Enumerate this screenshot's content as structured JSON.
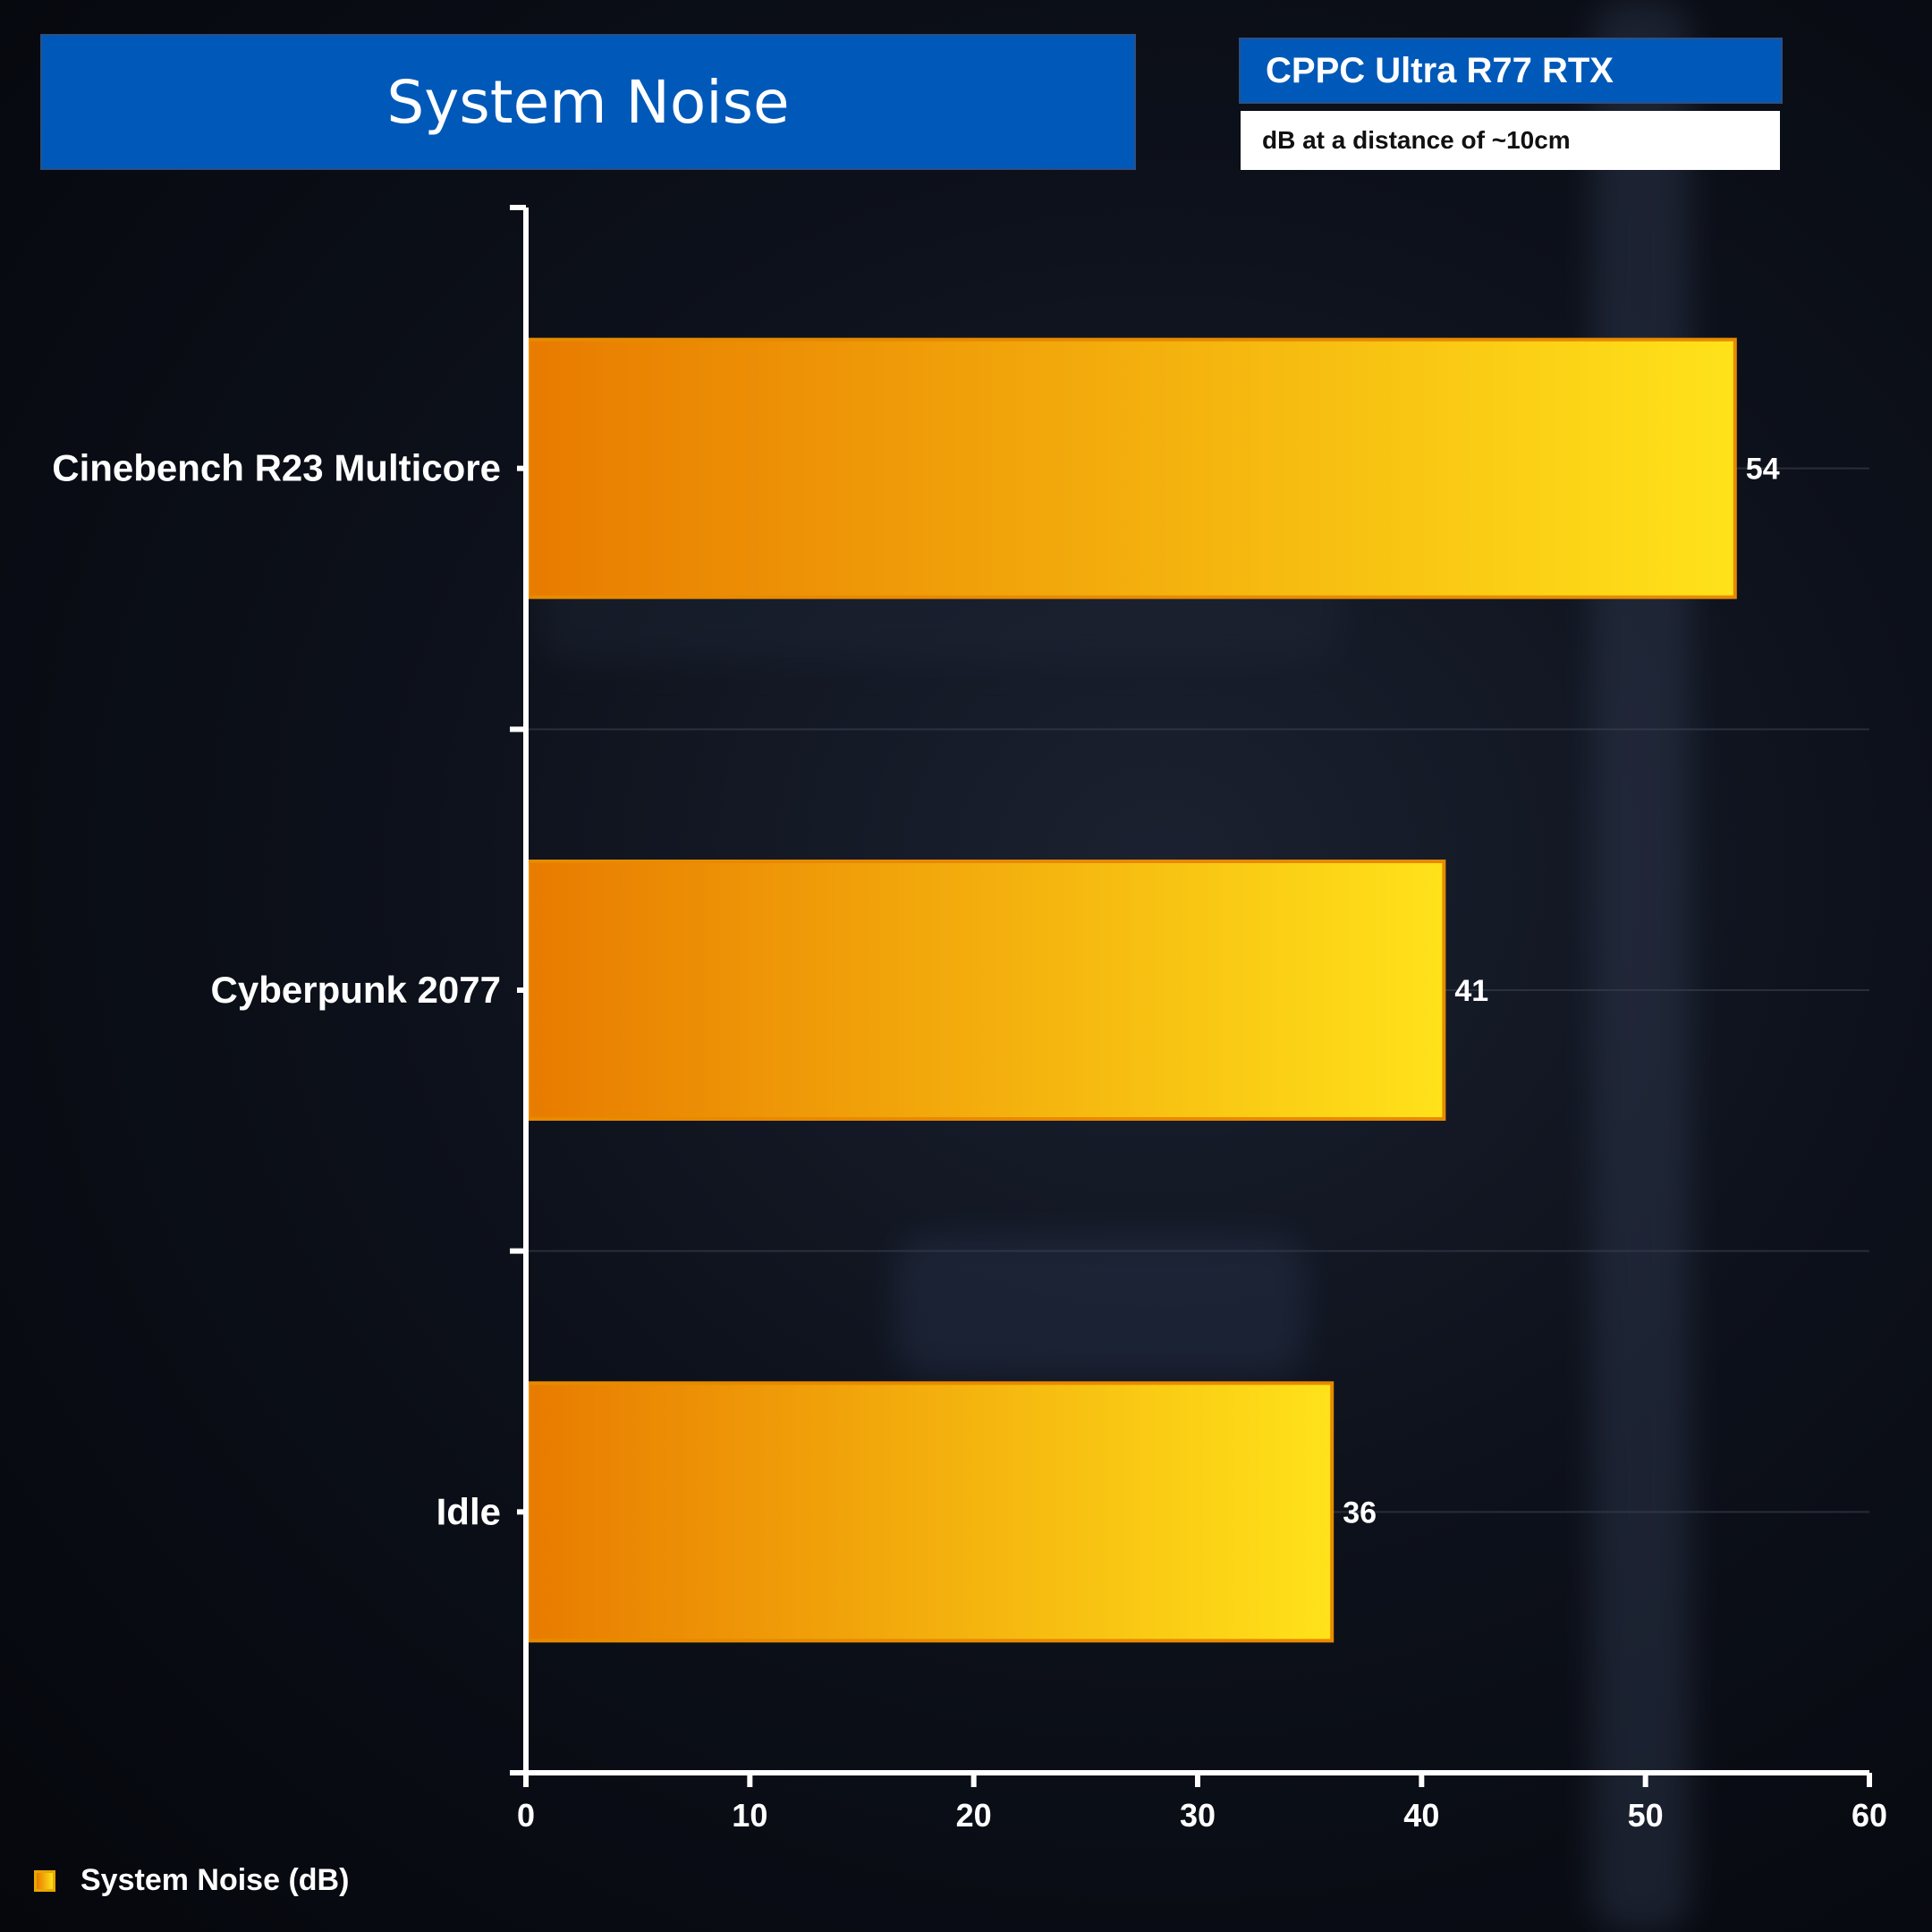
{
  "chart_data": {
    "type": "bar",
    "orientation": "horizontal",
    "title": "System Noise",
    "subtitle": "CPPC Ultra R77 RTX",
    "note": "dB at a distance of  ~10cm",
    "categories": [
      "Cinebench R23 Multicore",
      "Cyberpunk 2077",
      "Idle"
    ],
    "series": [
      {
        "name": "System Noise (dB)",
        "values": [
          54,
          41,
          36
        ]
      }
    ],
    "xlim": [
      0,
      60
    ],
    "xticks": [
      0,
      10,
      20,
      30,
      40,
      50,
      60
    ],
    "grid": true,
    "legend_position": "bottom-left",
    "colors": {
      "bar_start": "#e87b00",
      "bar_end": "#ffe21a",
      "bar_border": "#e88a00",
      "axis": "#ffffff"
    }
  }
}
